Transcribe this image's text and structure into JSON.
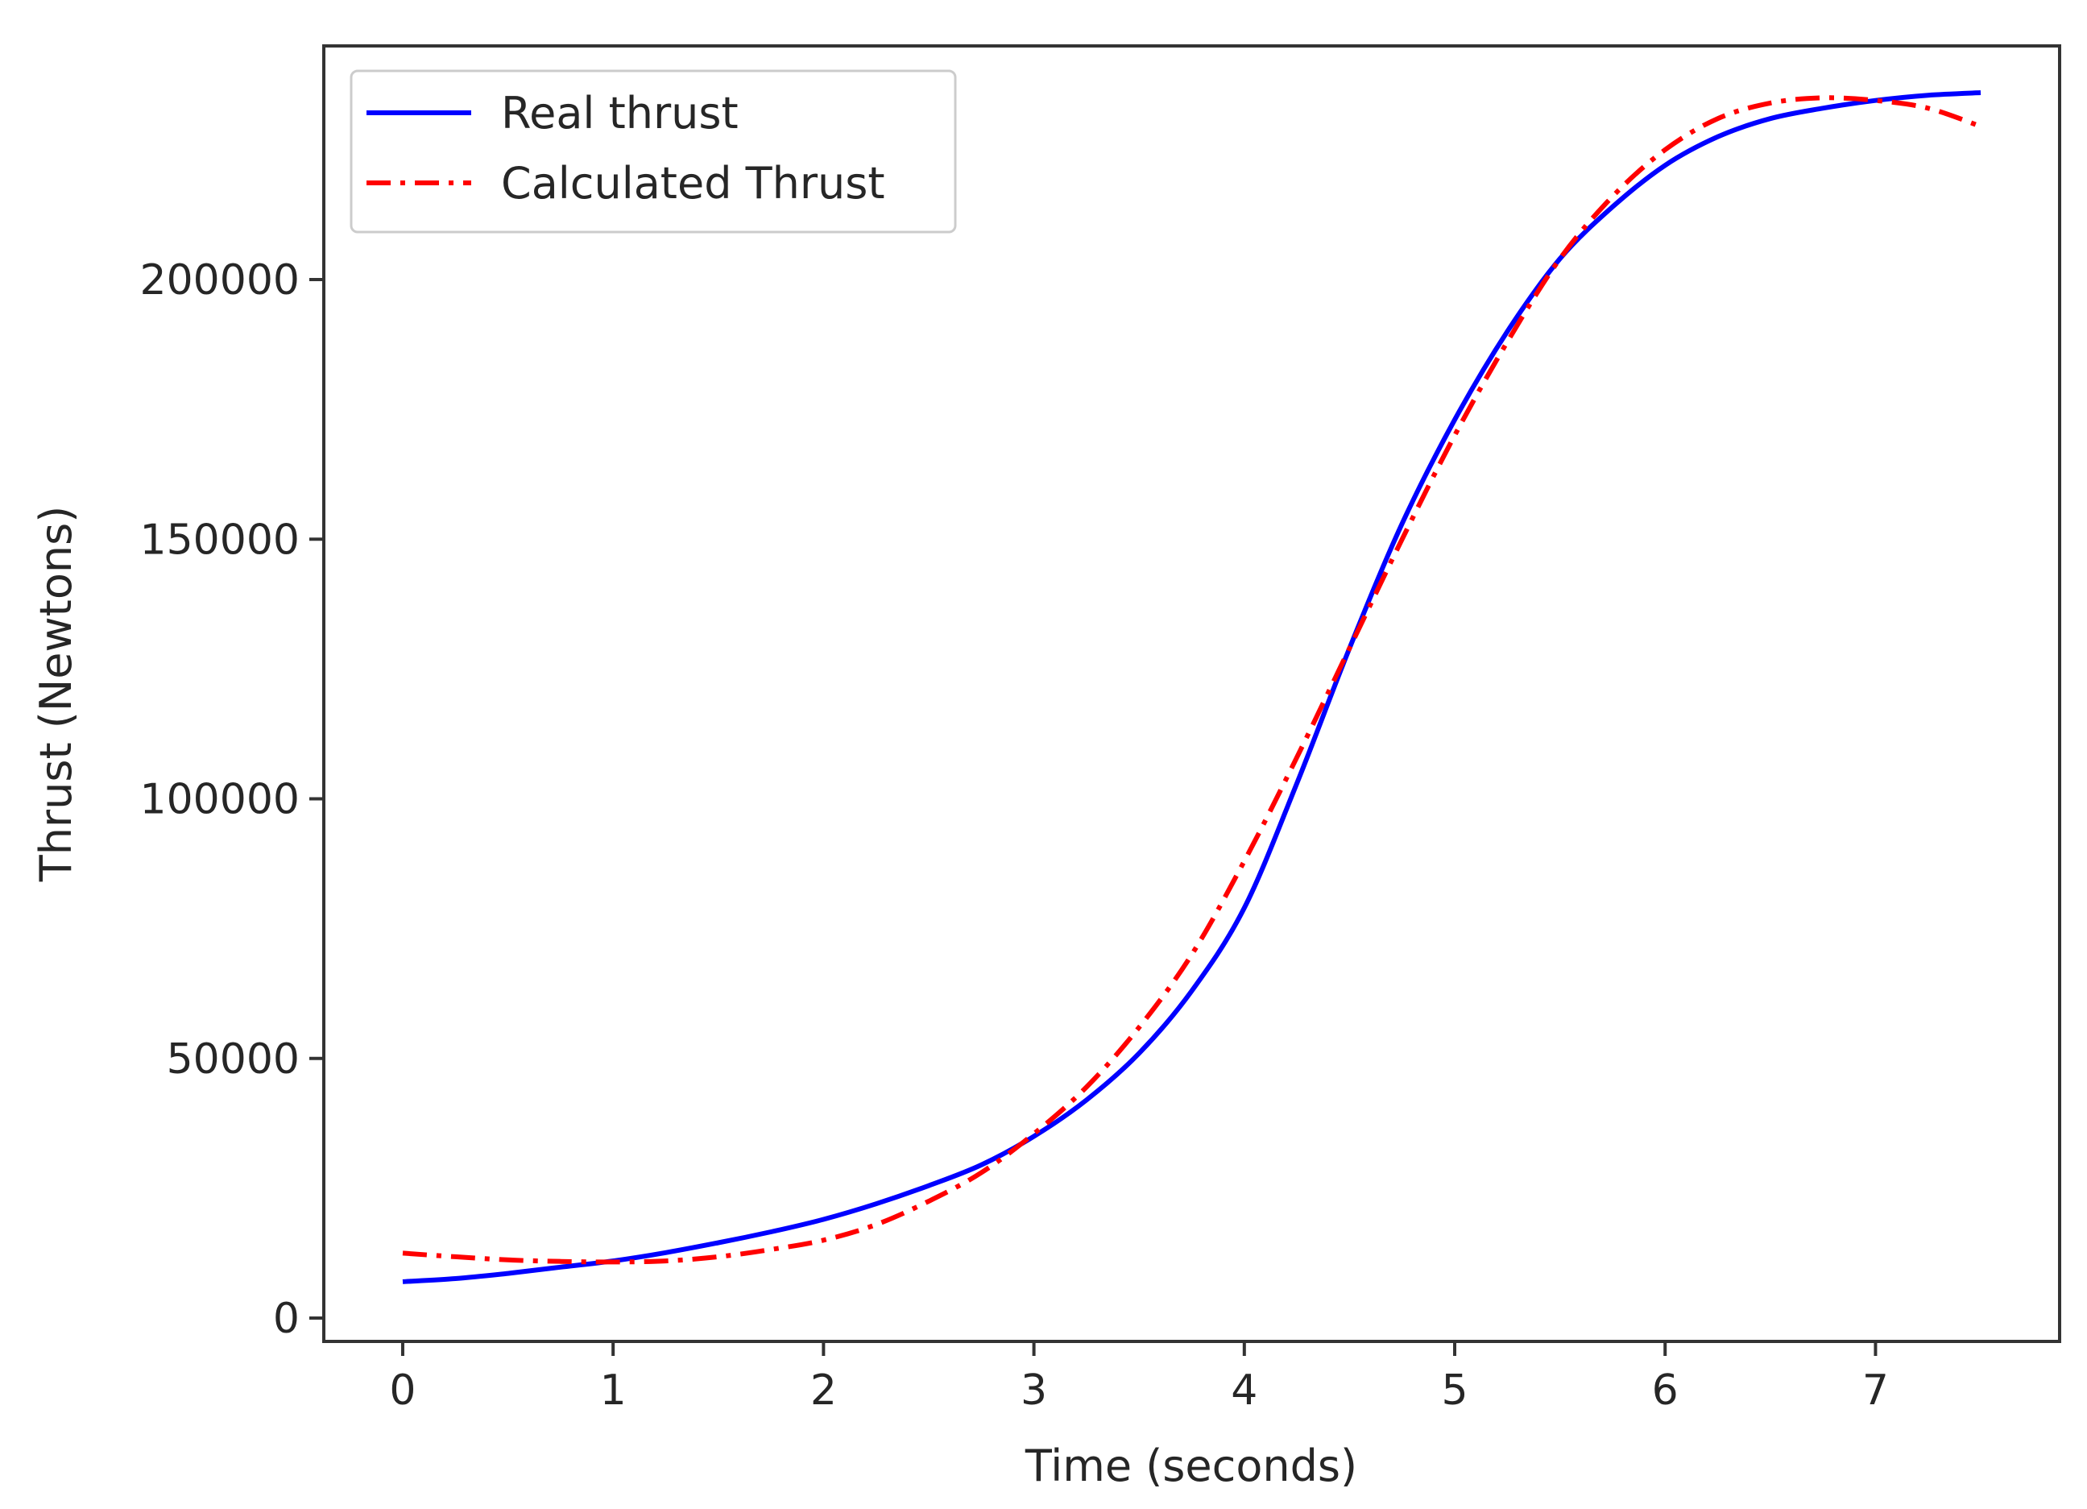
{
  "chart_data": {
    "type": "line",
    "title": "",
    "xlabel": "Time (seconds)",
    "ylabel": "Thrust (Newtons)",
    "xlim": [
      -0.375,
      7.875
    ],
    "ylim": [
      -4500,
      245000
    ],
    "xticks": [
      "0",
      "1",
      "2",
      "3",
      "4",
      "5",
      "6",
      "7"
    ],
    "yticks": [
      "0",
      "50000",
      "100000",
      "150000",
      "200000"
    ],
    "grid": false,
    "legend_position": "top-left",
    "series": [
      {
        "name": "Real thrust",
        "color": "#0000ff",
        "style": "solid",
        "x": [
          0,
          0.25,
          0.5,
          0.75,
          1.0,
          1.25,
          1.5,
          1.75,
          2.0,
          2.25,
          2.5,
          2.75,
          3.0,
          3.25,
          3.5,
          3.75,
          4.0,
          4.25,
          4.5,
          4.75,
          5.0,
          5.25,
          5.5,
          5.75,
          6.0,
          6.25,
          6.5,
          6.75,
          7.0,
          7.25,
          7.5
        ],
        "y": [
          7000,
          7600,
          8600,
          9800,
          11000,
          12600,
          14500,
          16600,
          19000,
          22000,
          25500,
          29500,
          35000,
          42000,
          51000,
          63000,
          79000,
          103000,
          129000,
          153000,
          173000,
          190000,
          204000,
          214000,
          222000,
          227500,
          231000,
          233000,
          234500,
          235500,
          236000
        ]
      },
      {
        "name": "Calculated Thrust",
        "color": "#ff0000",
        "style": "dashdot",
        "x": [
          0,
          0.25,
          0.5,
          0.75,
          1.0,
          1.25,
          1.5,
          1.75,
          2.0,
          2.25,
          2.5,
          2.75,
          3.0,
          3.25,
          3.5,
          3.75,
          4.0,
          4.25,
          4.5,
          4.75,
          5.0,
          5.25,
          5.5,
          5.75,
          6.0,
          6.25,
          6.5,
          6.75,
          7.0,
          7.25,
          7.5
        ],
        "y": [
          12500,
          11800,
          11200,
          10900,
          10800,
          11000,
          11800,
          13200,
          15000,
          18000,
          22500,
          28000,
          35500,
          44500,
          56000,
          70000,
          88000,
          108000,
          129000,
          150000,
          170000,
          188000,
          204000,
          216000,
          225000,
          231000,
          234000,
          235000,
          234500,
          233000,
          229500
        ]
      }
    ]
  }
}
